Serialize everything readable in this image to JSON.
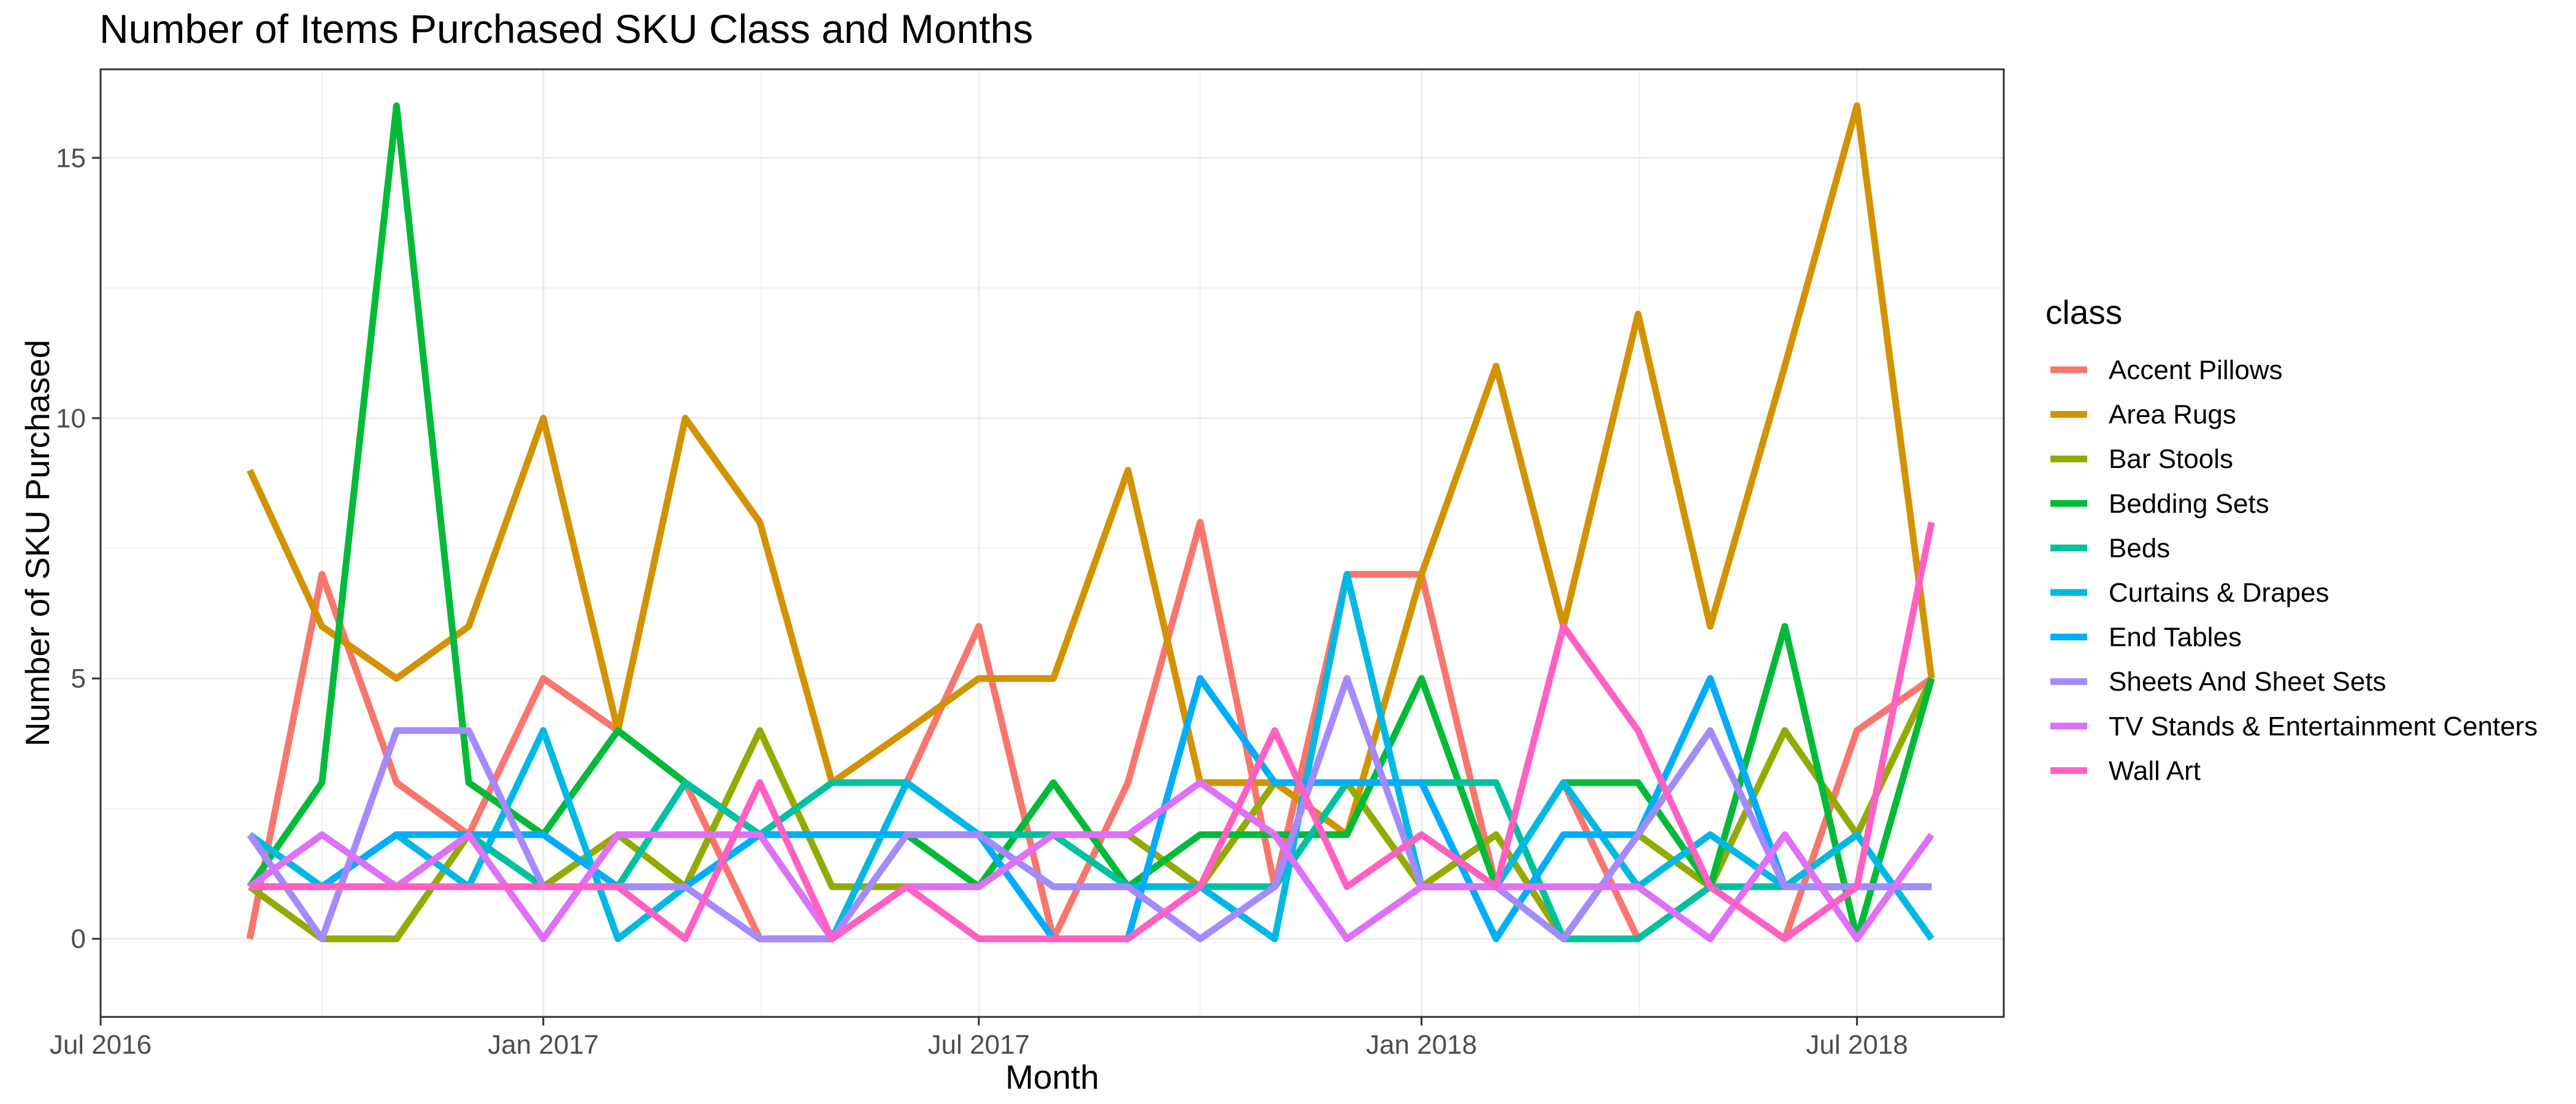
{
  "chart_data": {
    "type": "line",
    "title": "Number of Items Purchased SKU Class and Months",
    "xlabel": "Month",
    "ylabel": "Number of SKU Purchased",
    "legend_title": "class",
    "legend_position": "right",
    "grid": true,
    "xlim": [
      "2016-07-01",
      "2018-08-31"
    ],
    "ylim": [
      -1.5,
      16.7
    ],
    "x_ticks": [
      {
        "date": "2016-07-01",
        "label": "Jul 2016"
      },
      {
        "date": "2017-01-01",
        "label": "Jan 2017"
      },
      {
        "date": "2017-07-01",
        "label": "Jul 2017"
      },
      {
        "date": "2018-01-01",
        "label": "Jan 2018"
      },
      {
        "date": "2018-07-01",
        "label": "Jul 2018"
      }
    ],
    "y_ticks": [
      0,
      5,
      10,
      15
    ],
    "x": [
      "2016-09-01",
      "2016-10-01",
      "2016-11-01",
      "2016-12-01",
      "2017-01-01",
      "2017-02-01",
      "2017-03-01",
      "2017-04-01",
      "2017-05-01",
      "2017-06-01",
      "2017-07-01",
      "2017-08-01",
      "2017-09-01",
      "2017-10-01",
      "2017-11-01",
      "2017-12-01",
      "2018-01-01",
      "2018-02-01",
      "2018-03-01",
      "2018-04-01",
      "2018-05-01",
      "2018-06-01",
      "2018-07-01",
      "2018-08-01"
    ],
    "series": [
      {
        "name": "Accent Pillows",
        "color": "#F8766D",
        "values": [
          0,
          7,
          3,
          2,
          5,
          4,
          3,
          0,
          0,
          3,
          6,
          0,
          3,
          8,
          1,
          7,
          7,
          1,
          3,
          0,
          1,
          0,
          4,
          5
        ]
      },
      {
        "name": "Area Rugs",
        "color": "#D39200",
        "values": [
          9,
          6,
          5,
          6,
          10,
          4,
          10,
          8,
          3,
          4,
          5,
          5,
          9,
          3,
          3,
          2,
          7,
          11,
          6,
          12,
          6,
          11,
          16,
          5
        ]
      },
      {
        "name": "Bar Stools",
        "color": "#93AA00",
        "values": [
          1,
          0,
          0,
          2,
          1,
          2,
          1,
          4,
          1,
          1,
          1,
          2,
          2,
          1,
          3,
          3,
          1,
          2,
          0,
          2,
          1,
          4,
          2,
          5
        ]
      },
      {
        "name": "Bedding Sets",
        "color": "#00BA38",
        "values": [
          1,
          3,
          16,
          3,
          2,
          4,
          3,
          2,
          2,
          2,
          1,
          3,
          1,
          2,
          2,
          2,
          5,
          1,
          3,
          3,
          1,
          6,
          0,
          5
        ]
      },
      {
        "name": "Beds",
        "color": "#00C19F",
        "values": [
          1,
          1,
          1,
          2,
          1,
          1,
          3,
          2,
          3,
          3,
          2,
          2,
          1,
          1,
          1,
          3,
          3,
          3,
          0,
          0,
          1,
          1,
          1,
          1
        ]
      },
      {
        "name": "Curtains & Drapes",
        "color": "#00B9E3",
        "values": [
          2,
          1,
          2,
          1,
          4,
          0,
          1,
          2,
          0,
          3,
          2,
          1,
          1,
          1,
          0,
          7,
          1,
          1,
          3,
          1,
          2,
          1,
          2,
          0
        ]
      },
      {
        "name": "End Tables",
        "color": "#00ADFA",
        "values": [
          1,
          1,
          2,
          2,
          2,
          1,
          1,
          2,
          2,
          2,
          2,
          0,
          0,
          5,
          3,
          3,
          3,
          0,
          2,
          2,
          5,
          1,
          1,
          1
        ]
      },
      {
        "name": "Sheets And Sheet Sets",
        "color": "#A58AFF",
        "values": [
          2,
          0,
          4,
          4,
          1,
          1,
          1,
          0,
          0,
          2,
          2,
          1,
          1,
          0,
          1,
          5,
          1,
          1,
          0,
          2,
          4,
          1,
          1,
          1
        ]
      },
      {
        "name": "TV Stands & Entertainment Centers",
        "color": "#DF70F8",
        "values": [
          1,
          2,
          1,
          2,
          0,
          2,
          2,
          2,
          0,
          1,
          1,
          2,
          2,
          3,
          2,
          0,
          1,
          1,
          1,
          1,
          0,
          2,
          0,
          2
        ]
      },
      {
        "name": "Wall Art",
        "color": "#FF61C3",
        "values": [
          1,
          1,
          1,
          1,
          1,
          1,
          0,
          3,
          0,
          1,
          0,
          0,
          0,
          1,
          4,
          1,
          2,
          1,
          6,
          4,
          1,
          0,
          1,
          8
        ]
      }
    ]
  }
}
